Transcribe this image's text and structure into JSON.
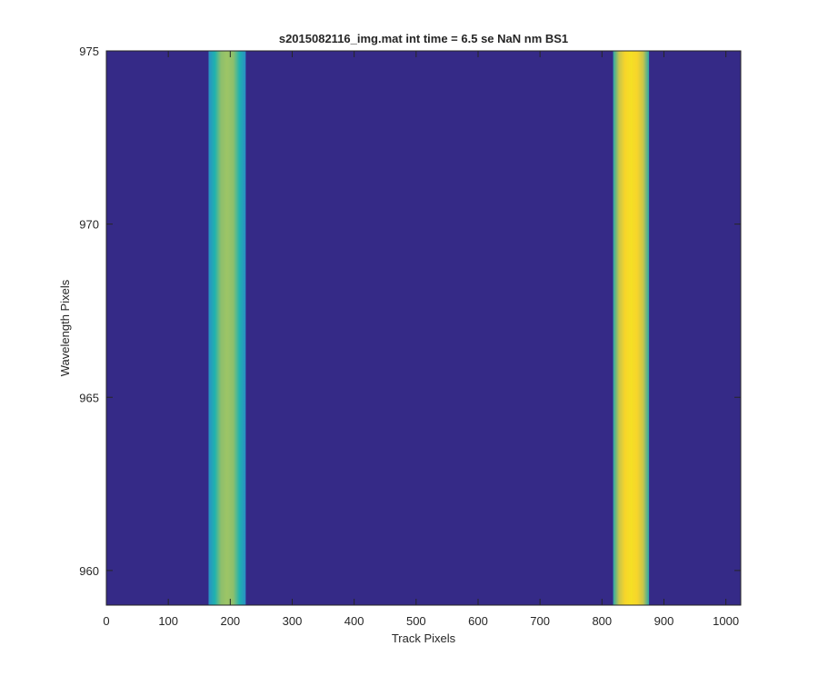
{
  "chart_data": {
    "type": "image",
    "title": "s2015082116_img.mat int time = 6.5 se  NaN nm BS1",
    "x_label": "Track Pixels",
    "y_label": "Wavelength Pixels",
    "xlim": [
      0,
      1024
    ],
    "ylim": [
      959,
      975
    ],
    "xticks": [
      0,
      100,
      200,
      300,
      400,
      500,
      600,
      700,
      800,
      900,
      1000
    ],
    "yticks": [
      960,
      965,
      970,
      975
    ],
    "background": "#352a87",
    "bands": [
      {
        "x": [
          165,
          225
        ],
        "colors": [
          "#2a8fc4",
          "#1fb2b0",
          "#8cbf6c",
          "#9ec566",
          "#8cbf6c",
          "#1fb2b0",
          "#2a8fc4"
        ]
      },
      {
        "x": [
          818,
          876
        ],
        "colors": [
          "#2aa8a8",
          "#c8c64a",
          "#f7d52a",
          "#f5e024",
          "#f7d52a",
          "#c8c64a",
          "#2aa8a8"
        ]
      }
    ]
  }
}
